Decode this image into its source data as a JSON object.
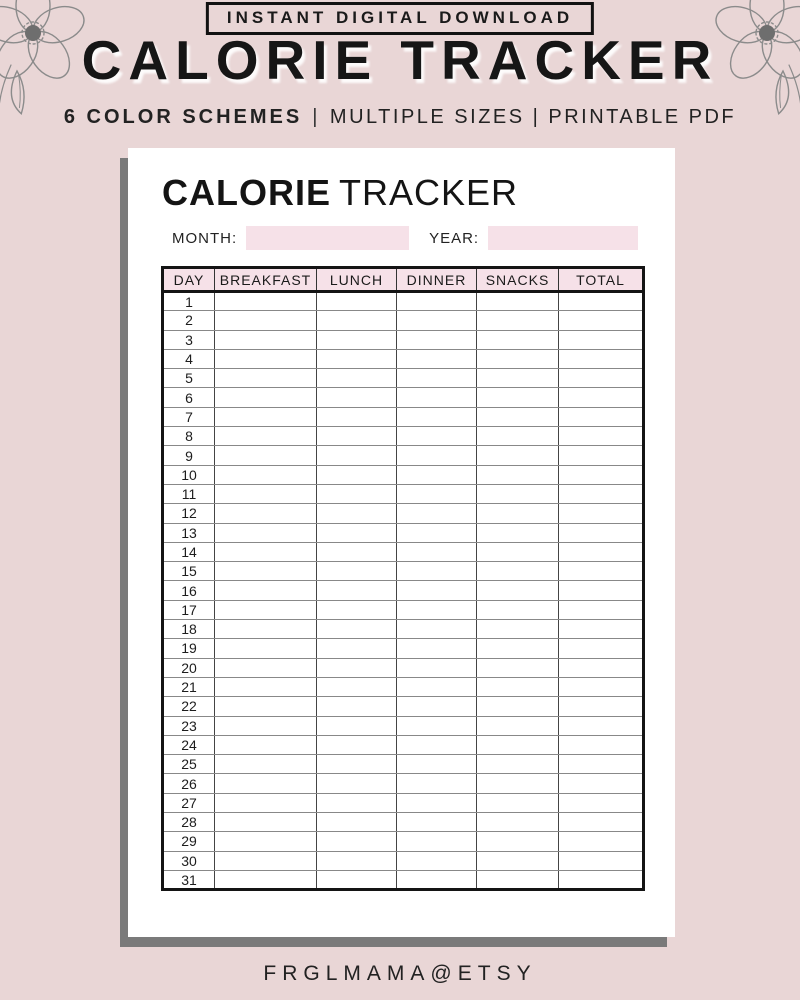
{
  "colors": {
    "background": "#e9d6d6",
    "accent_pink": "#f6e1e8",
    "paper_shadow": "#7a7a7a",
    "ink": "#1a1a1a",
    "floral_line": "#8b8b8b"
  },
  "banner": {
    "badge": "INSTANT DIGITAL DOWNLOAD",
    "title": "CALORIE TRACKER",
    "subtitle_bold": "6 COLOR SCHEMES",
    "subtitle_separator": "|",
    "subtitle_rest": "MULTIPLE SIZES | PRINTABLE PDF"
  },
  "paper": {
    "title_bold": "CALORIE",
    "title_light": "TRACKER",
    "month_label": "MONTH:",
    "year_label": "YEAR:",
    "month_value": "",
    "year_value": "",
    "table": {
      "headers": [
        "DAY",
        "BREAKFAST",
        "LUNCH",
        "DINNER",
        "SNACKS",
        "TOTAL"
      ],
      "days": [
        "1",
        "2",
        "3",
        "4",
        "5",
        "6",
        "7",
        "8",
        "9",
        "10",
        "11",
        "12",
        "13",
        "14",
        "15",
        "16",
        "17",
        "18",
        "19",
        "20",
        "21",
        "22",
        "23",
        "24",
        "25",
        "26",
        "27",
        "28",
        "29",
        "30",
        "31"
      ],
      "entry_columns_per_day": 5
    }
  },
  "footer": {
    "brand": "FRGLMAMA@ETSY"
  }
}
